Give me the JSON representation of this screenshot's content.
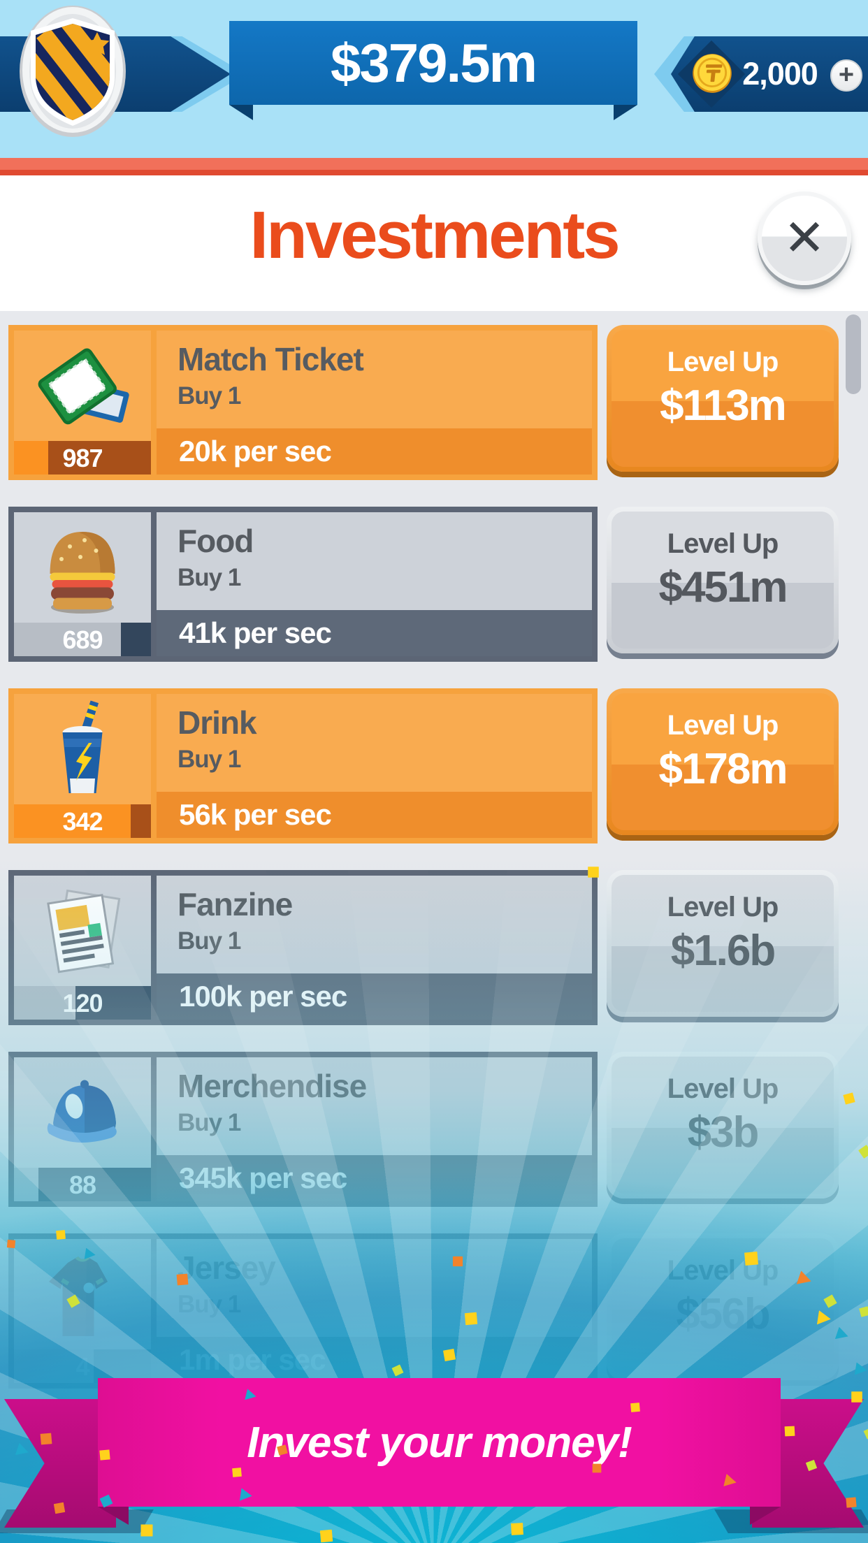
{
  "header": {
    "cash": "$379.5m",
    "coins": "2,000",
    "plus_label": "+",
    "title": "Investments",
    "close_label": "✕"
  },
  "investments": [
    {
      "name": "Match Ticket",
      "buy_label": "Buy 1",
      "rate": "20k per sec",
      "count": "987",
      "level_up_label": "Level Up",
      "price": "$113m",
      "active": true,
      "progress_pct": 25,
      "icon": "ticket-icon"
    },
    {
      "name": "Food",
      "buy_label": "Buy 1",
      "rate": "41k per sec",
      "count": "689",
      "level_up_label": "Level Up",
      "price": "$451m",
      "active": false,
      "progress_pct": 78,
      "icon": "burger-icon"
    },
    {
      "name": "Drink",
      "buy_label": "Buy 1",
      "rate": "56k per sec",
      "count": "342",
      "level_up_label": "Level Up",
      "price": "$178m",
      "active": true,
      "progress_pct": 85,
      "icon": "drink-icon"
    },
    {
      "name": "Fanzine",
      "buy_label": "Buy 1",
      "rate": "100k per sec",
      "count": "120",
      "level_up_label": "Level Up",
      "price": "$1.6b",
      "active": false,
      "progress_pct": 45,
      "icon": "fanzine-icon"
    },
    {
      "name": "Merchendise",
      "buy_label": "Buy 1",
      "rate": "345k per sec",
      "count": "88",
      "level_up_label": "Level Up",
      "price": "$3b",
      "active": false,
      "progress_pct": 18,
      "icon": "cap-icon"
    },
    {
      "name": "Jersey",
      "buy_label": "Buy 1",
      "rate": "1m per sec",
      "count": "4",
      "level_up_label": "Level Up",
      "price": "$56b",
      "active": false,
      "progress_pct": 58,
      "icon": "jersey-icon"
    }
  ],
  "footer": {
    "cta": "Invest your money!"
  },
  "colors": {
    "accent_orange": "#f6a23d",
    "inactive_slate": "#5c6575",
    "title_red": "#ea4c1c",
    "banner_blue": "#1478c6",
    "ribbon_magenta": "#f110a2",
    "sky": "#a9e1f7",
    "confetti": [
      "#ffd21c",
      "#f2832b",
      "#1fa9cc",
      "#cfe23a"
    ]
  }
}
